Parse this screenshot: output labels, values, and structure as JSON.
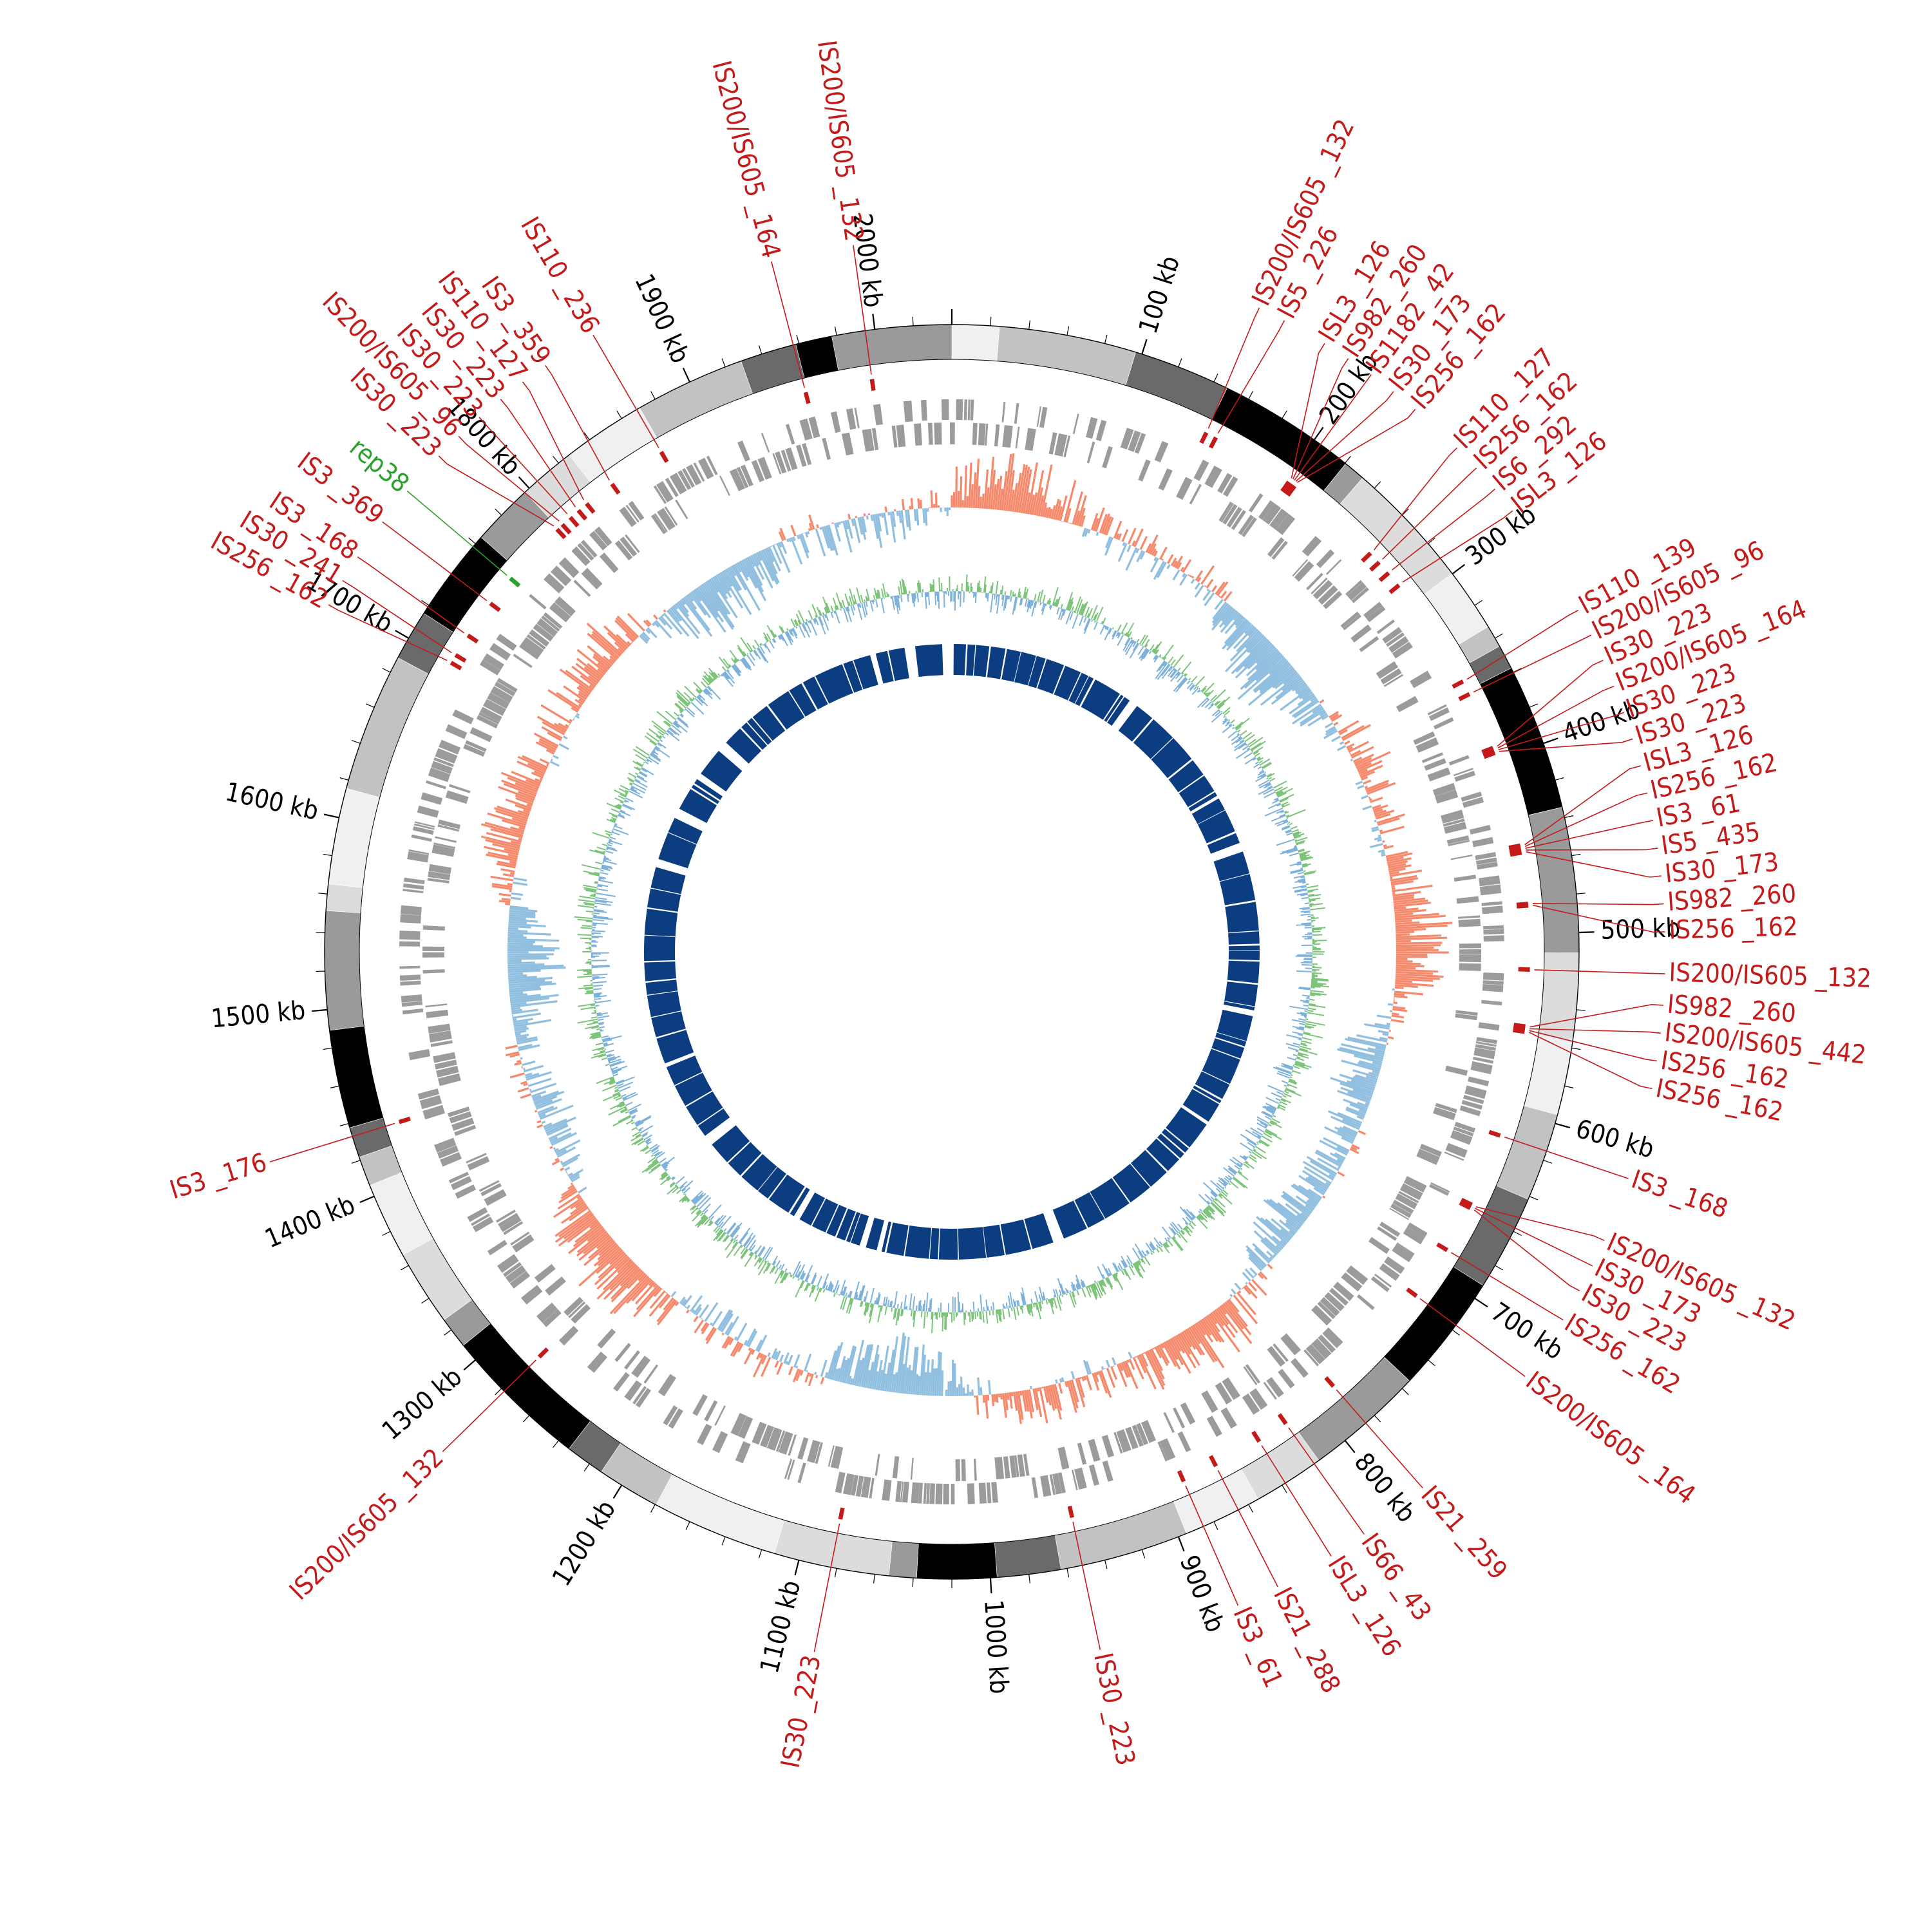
{
  "genome": {
    "length_kb": 2040,
    "kb_unit": "kb"
  },
  "colors": {
    "is_element": "#c41a1a",
    "rep_element": "#2ca02c",
    "orf": "#9b9b9b",
    "gc_skew_positive": "#f4896b",
    "gc_skew_negative": "#91bfdf",
    "gc_content_positive": "#7cc47a",
    "gc_content_negative": "#7fb2da",
    "inner_blocks": "#0b3d80",
    "contig_shades": [
      "#f0f0f0",
      "#c2c2c2",
      "#6a6a6a",
      "#000000",
      "#9a9a9a",
      "#dcdcdc"
    ]
  },
  "kb_ticks": [
    {
      "pos": 100,
      "label": "100 kb"
    },
    {
      "pos": 200,
      "label": "200 kb"
    },
    {
      "pos": 300,
      "label": "300 kb"
    },
    {
      "pos": 400,
      "label": "400 kb"
    },
    {
      "pos": 500,
      "label": "500 kb"
    },
    {
      "pos": 600,
      "label": "600 kb"
    },
    {
      "pos": 700,
      "label": "700 kb"
    },
    {
      "pos": 800,
      "label": "800 kb"
    },
    {
      "pos": 900,
      "label": "900 kb"
    },
    {
      "pos": 1000,
      "label": "1000 kb"
    },
    {
      "pos": 1100,
      "label": "1100 kb"
    },
    {
      "pos": 1200,
      "label": "1200 kb"
    },
    {
      "pos": 1300,
      "label": "1300 kb"
    },
    {
      "pos": 1400,
      "label": "1400 kb"
    },
    {
      "pos": 1500,
      "label": "1500 kb"
    },
    {
      "pos": 1600,
      "label": "1600 kb"
    },
    {
      "pos": 1700,
      "label": "1700 kb"
    },
    {
      "pos": 1800,
      "label": "1800 kb"
    },
    {
      "pos": 1900,
      "label": "1900 kb"
    },
    {
      "pos": 2000,
      "label": "2000 kb"
    }
  ],
  "mobile_elements": [
    {
      "label": "IS200/IS605 _132",
      "pos": 148,
      "type": "IS"
    },
    {
      "label": "IS5 _226",
      "pos": 154,
      "type": "IS"
    },
    {
      "label": "ISL3 _126",
      "pos": 202,
      "type": "IS"
    },
    {
      "label": "IS982 _260",
      "pos": 203,
      "type": "IS"
    },
    {
      "label": "IS1182 _42",
      "pos": 204,
      "type": "IS"
    },
    {
      "label": "IS30 _173",
      "pos": 205,
      "type": "IS"
    },
    {
      "label": "IS256 _162",
      "pos": 206,
      "type": "IS"
    },
    {
      "label": "IS110 _127",
      "pos": 263,
      "type": "IS"
    },
    {
      "label": "IS256 _162",
      "pos": 270,
      "type": "IS"
    },
    {
      "label": "IS6 _292",
      "pos": 278,
      "type": "IS"
    },
    {
      "label": "ISL3 _126",
      "pos": 287,
      "type": "IS"
    },
    {
      "label": "IS110 _139",
      "pos": 352,
      "type": "IS"
    },
    {
      "label": "IS200/IS605 _96",
      "pos": 360,
      "type": "IS"
    },
    {
      "label": "IS30 _223",
      "pos": 393,
      "type": "IS"
    },
    {
      "label": "IS200/IS605 _164",
      "pos": 394,
      "type": "IS"
    },
    {
      "label": "IS30 _223",
      "pos": 395,
      "type": "IS"
    },
    {
      "label": "IS30 _223",
      "pos": 396,
      "type": "IS"
    },
    {
      "label": "ISL3 _126",
      "pos": 450,
      "type": "IS"
    },
    {
      "label": "IS256 _162",
      "pos": 451,
      "type": "IS"
    },
    {
      "label": "IS3 _61",
      "pos": 452,
      "type": "IS"
    },
    {
      "label": "IS5 _435",
      "pos": 453,
      "type": "IS"
    },
    {
      "label": "IS30 _173",
      "pos": 454,
      "type": "IS"
    },
    {
      "label": "IS982 _260",
      "pos": 483,
      "type": "IS"
    },
    {
      "label": "IS256 _162",
      "pos": 484,
      "type": "IS"
    },
    {
      "label": "IS200/IS605 _132",
      "pos": 520,
      "type": "IS"
    },
    {
      "label": "IS982 _260",
      "pos": 552,
      "type": "IS"
    },
    {
      "label": "IS200/IS605 _442",
      "pos": 553,
      "type": "IS"
    },
    {
      "label": "IS256 _162",
      "pos": 554,
      "type": "IS"
    },
    {
      "label": "IS256 _162",
      "pos": 555,
      "type": "IS"
    },
    {
      "label": "IS3 _168",
      "pos": 615,
      "type": "IS"
    },
    {
      "label": "IS200/IS605 _132",
      "pos": 657,
      "type": "IS"
    },
    {
      "label": "IS30 _173",
      "pos": 658,
      "type": "IS"
    },
    {
      "label": "IS30 _223",
      "pos": 659,
      "type": "IS"
    },
    {
      "label": "IS256 _162",
      "pos": 686,
      "type": "IS"
    },
    {
      "label": "IS200/IS605 _164",
      "pos": 717,
      "type": "IS"
    },
    {
      "label": "IS21 _259",
      "pos": 786,
      "type": "IS"
    },
    {
      "label": "IS66 _43",
      "pos": 820,
      "type": "IS"
    },
    {
      "label": "ISL3 _126",
      "pos": 838,
      "type": "IS"
    },
    {
      "label": "IS21 _288",
      "pos": 866,
      "type": "IS"
    },
    {
      "label": "IS3 _61",
      "pos": 886,
      "type": "IS"
    },
    {
      "label": "IS30 _223",
      "pos": 952,
      "type": "IS"
    },
    {
      "label": "IS30 _223",
      "pos": 1083,
      "type": "IS"
    },
    {
      "label": "IS200/IS605 _132",
      "pos": 1278,
      "type": "IS"
    },
    {
      "label": "IS3 _176",
      "pos": 1433,
      "type": "IS"
    },
    {
      "label": "IS256 _162",
      "pos": 1700,
      "type": "IS"
    },
    {
      "label": "IS30 _241",
      "pos": 1705,
      "type": "IS"
    },
    {
      "label": "IS3 _168",
      "pos": 1718,
      "type": "IS"
    },
    {
      "label": "IS3 _369",
      "pos": 1740,
      "type": "IS"
    },
    {
      "label": "rep38",
      "pos": 1758,
      "type": "rep"
    },
    {
      "label": "IS30 _223",
      "pos": 1796,
      "type": "IS"
    },
    {
      "label": "IS200/IS605 _96",
      "pos": 1800,
      "type": "IS"
    },
    {
      "label": "IS30 _223",
      "pos": 1806,
      "type": "IS"
    },
    {
      "label": "IS30 _223",
      "pos": 1812,
      "type": "IS"
    },
    {
      "label": "IS110 _127",
      "pos": 1818,
      "type": "IS"
    },
    {
      "label": "IS3 _359",
      "pos": 1836,
      "type": "IS"
    },
    {
      "label": "IS110 _236",
      "pos": 1869,
      "type": "IS"
    },
    {
      "label": "IS200/IS605 _164",
      "pos": 1957,
      "type": "IS"
    },
    {
      "label": "IS200/IS605 _132",
      "pos": 1995,
      "type": "IS"
    }
  ]
}
